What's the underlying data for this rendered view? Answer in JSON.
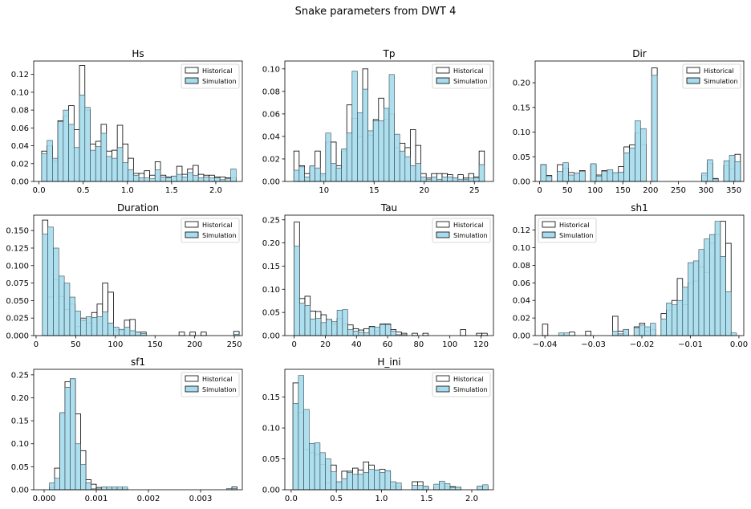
{
  "figure": {
    "title": "Snake parameters from DWT 4",
    "legend": {
      "historical_label": "Historical",
      "simulation_label": "Simulation"
    },
    "colors": {
      "simulation_fill": "#a6dcee",
      "historical_fill": "#ffffff",
      "edge": "#000000",
      "axis": "#000000"
    }
  },
  "chart_data": [
    {
      "type": "bar",
      "title": "Hs",
      "xlabel": "",
      "ylabel": "",
      "legend_position": "top-right",
      "xlim": [
        -0.06,
        2.3
      ],
      "ylim": [
        0,
        0.135
      ],
      "xticks": [
        0.0,
        0.5,
        1.0,
        1.5,
        2.0
      ],
      "xtick_labels": [
        "0.0",
        "0.5",
        "1.0",
        "1.5",
        "2.0"
      ],
      "yticks": [
        0.0,
        0.02,
        0.04,
        0.06,
        0.08,
        0.1,
        0.12
      ],
      "ytick_labels": [
        "0.00",
        "0.02",
        "0.04",
        "0.06",
        "0.08",
        "0.10",
        "0.12"
      ],
      "bins_start": 0.03,
      "bins_end": 2.23,
      "series": [
        {
          "name": "Historical",
          "values": [
            0.034,
            0.04,
            0.023,
            0.068,
            0.073,
            0.085,
            0.058,
            0.13,
            0.08,
            0.042,
            0.045,
            0.064,
            0.034,
            0.035,
            0.063,
            0.042,
            0.026,
            0.009,
            0.009,
            0.012,
            0.007,
            0.022,
            0.007,
            0.005,
            0.006,
            0.017,
            0.008,
            0.014,
            0.018,
            0.008,
            0.007,
            0.007,
            0.005,
            0.005,
            0.004,
            0.004
          ]
        },
        {
          "name": "Simulation",
          "values": [
            0.031,
            0.046,
            0.026,
            0.067,
            0.08,
            0.064,
            0.038,
            0.097,
            0.083,
            0.035,
            0.039,
            0.054,
            0.028,
            0.026,
            0.038,
            0.021,
            0.013,
            0.007,
            0.004,
            0.004,
            0.003,
            0.013,
            0.005,
            0.004,
            0.006,
            0.008,
            0.005,
            0.01,
            0.007,
            0.004,
            0.005,
            0.004,
            0.004,
            0.002,
            0.003,
            0.014
          ]
        }
      ]
    },
    {
      "type": "bar",
      "title": "Tp",
      "xlabel": "",
      "ylabel": "",
      "legend_position": "top-right",
      "xlim": [
        6.1,
        26.9
      ],
      "ylim": [
        0,
        0.107
      ],
      "xticks": [
        10,
        15,
        20,
        25
      ],
      "xtick_labels": [
        "10",
        "15",
        "20",
        "25"
      ],
      "yticks": [
        0.0,
        0.02,
        0.04,
        0.06,
        0.08,
        0.1
      ],
      "ytick_labels": [
        "0.00",
        "0.02",
        "0.04",
        "0.06",
        "0.08",
        "0.10"
      ],
      "bins_start": 7.0,
      "bins_end": 26.0,
      "series": [
        {
          "name": "Historical",
          "values": [
            0.027,
            0.014,
            0.007,
            0.013,
            0.027,
            0.005,
            0.035,
            0.035,
            0.014,
            0.027,
            0.068,
            0.056,
            0.04,
            0.1,
            0.041,
            0.055,
            0.074,
            0.055,
            0.06,
            0.03,
            0.034,
            0.03,
            0.046,
            0.032,
            0.007,
            0.003,
            0.007,
            0.007,
            0.007,
            0.006,
            0.003,
            0.006,
            0.003,
            0.007,
            0.004,
            0.027
          ]
        },
        {
          "name": "Simulation",
          "values": [
            0.01,
            0.013,
            0.004,
            0.014,
            0.012,
            0.007,
            0.043,
            0.016,
            0.012,
            0.029,
            0.043,
            0.098,
            0.061,
            0.082,
            0.045,
            0.054,
            0.054,
            0.065,
            0.095,
            0.042,
            0.027,
            0.022,
            0.014,
            0.016,
            0.004,
            0.002,
            0.004,
            0.002,
            0.004,
            0.004,
            0.003,
            0.002,
            0.002,
            0.003,
            0.003,
            0.015
          ]
        }
      ]
    },
    {
      "type": "bar",
      "title": "Dir",
      "xlabel": "",
      "ylabel": "",
      "legend_position": "top-right",
      "xlim": [
        -8,
        368
      ],
      "ylim": [
        0,
        0.244
      ],
      "xticks": [
        0,
        50,
        100,
        150,
        200,
        250,
        300,
        350
      ],
      "xtick_labels": [
        "0",
        "50",
        "100",
        "150",
        "200",
        "250",
        "300",
        "350"
      ],
      "yticks": [
        0.0,
        0.05,
        0.1,
        0.15,
        0.2
      ],
      "ytick_labels": [
        "0.00",
        "0.05",
        "0.10",
        "0.15",
        "0.20"
      ],
      "bins_start": 2.0,
      "bins_end": 362.0,
      "series": [
        {
          "name": "Historical",
          "values": [
            0.034,
            0.012,
            0.0,
            0.034,
            0.027,
            0.018,
            0.016,
            0.022,
            0.0,
            0.034,
            0.013,
            0.022,
            0.017,
            0.015,
            0.03,
            0.07,
            0.074,
            0.098,
            0.075,
            0.0,
            0.23,
            0.0,
            0.0,
            0.0,
            0.0,
            0.0,
            0.0,
            0.0,
            0.0,
            0.012,
            0.037,
            0.006,
            0.0,
            0.032,
            0.025,
            0.055
          ]
        },
        {
          "name": "Simulation",
          "values": [
            0.034,
            0.01,
            0.0,
            0.02,
            0.038,
            0.013,
            0.017,
            0.02,
            0.0,
            0.036,
            0.011,
            0.02,
            0.024,
            0.018,
            0.019,
            0.058,
            0.068,
            0.123,
            0.107,
            0.0,
            0.215,
            0.0,
            0.0,
            0.0,
            0.0,
            0.0,
            0.0,
            0.0,
            0.0,
            0.017,
            0.044,
            0.005,
            0.0,
            0.042,
            0.053,
            0.04
          ]
        }
      ]
    },
    {
      "type": "bar",
      "title": "Duration",
      "xlabel": "",
      "ylabel": "",
      "legend_position": "top-right",
      "xlim": [
        -3,
        260
      ],
      "ylim": [
        0,
        0.172
      ],
      "xticks": [
        0,
        50,
        100,
        150,
        200,
        250
      ],
      "xtick_labels": [
        "0",
        "50",
        "100",
        "150",
        "200",
        "250"
      ],
      "yticks": [
        0.0,
        0.025,
        0.05,
        0.075,
        0.1,
        0.125,
        0.15
      ],
      "ytick_labels": [
        "0.000",
        "0.025",
        "0.050",
        "0.075",
        "0.100",
        "0.125",
        "0.150"
      ],
      "bins_start": 8.0,
      "bins_end": 256.0,
      "series": [
        {
          "name": "Historical",
          "values": [
            0.165,
            0.055,
            0.08,
            0.056,
            0.037,
            0.045,
            0.013,
            0.025,
            0.018,
            0.033,
            0.045,
            0.075,
            0.062,
            0.008,
            0.008,
            0.022,
            0.023,
            0.005,
            0.005,
            0.0,
            0.0,
            0.0,
            0.0,
            0.0,
            0.0,
            0.005,
            0.0,
            0.005,
            0.0,
            0.005,
            0.0,
            0.0,
            0.0,
            0.0,
            0.0,
            0.006
          ]
        },
        {
          "name": "Simulation",
          "values": [
            0.145,
            0.155,
            0.125,
            0.085,
            0.075,
            0.055,
            0.035,
            0.022,
            0.027,
            0.026,
            0.027,
            0.034,
            0.018,
            0.012,
            0.009,
            0.012,
            0.007,
            0.005,
            0.003,
            0.0,
            0.0,
            0.0,
            0.0,
            0.0,
            0.0,
            0.0,
            0.0,
            0.0,
            0.0,
            0.0,
            0.0,
            0.0,
            0.0,
            0.0,
            0.0,
            0.002
          ]
        }
      ]
    },
    {
      "type": "bar",
      "title": "Tau",
      "xlabel": "",
      "ylabel": "",
      "legend_position": "top-right",
      "xlim": [
        -6,
        128
      ],
      "ylim": [
        0,
        0.26
      ],
      "xticks": [
        0,
        20,
        40,
        60,
        80,
        100,
        120
      ],
      "xtick_labels": [
        "0",
        "20",
        "40",
        "60",
        "80",
        "100",
        "120"
      ],
      "yticks": [
        0.0,
        0.05,
        0.1,
        0.15,
        0.2,
        0.25
      ],
      "ytick_labels": [
        "0.00",
        "0.05",
        "0.10",
        "0.15",
        "0.20",
        "0.25"
      ],
      "bins_start": 0.0,
      "bins_end": 124.0,
      "series": [
        {
          "name": "Historical",
          "values": [
            0.245,
            0.08,
            0.085,
            0.053,
            0.052,
            0.045,
            0.035,
            0.025,
            0.037,
            0.025,
            0.023,
            0.015,
            0.012,
            0.015,
            0.02,
            0.01,
            0.025,
            0.025,
            0.013,
            0.008,
            0.005,
            0.0,
            0.005,
            0.0,
            0.005,
            0.0,
            0.0,
            0.0,
            0.0,
            0.0,
            0.0,
            0.013,
            0.0,
            0.0,
            0.005,
            0.005
          ]
        },
        {
          "name": "Simulation",
          "values": [
            0.193,
            0.07,
            0.065,
            0.036,
            0.037,
            0.028,
            0.035,
            0.03,
            0.055,
            0.056,
            0.013,
            0.01,
            0.007,
            0.006,
            0.019,
            0.018,
            0.024,
            0.024,
            0.01,
            0.002,
            0.002,
            0.0,
            0.0,
            0.0,
            0.0,
            0.0,
            0.0,
            0.0,
            0.0,
            0.0,
            0.0,
            0.0,
            0.0,
            0.0,
            0.0,
            0.0
          ]
        }
      ]
    },
    {
      "type": "bar",
      "title": "sh1",
      "xlabel": "",
      "ylabel": "",
      "legend_position": "top-left",
      "xlim": [
        -0.042,
        0.001
      ],
      "ylim": [
        0,
        0.137
      ],
      "xticks": [
        -0.04,
        -0.03,
        -0.02,
        -0.01,
        0.0
      ],
      "xtick_labels": [
        "−0.04",
        "−0.03",
        "−0.02",
        "−0.01",
        "0.00"
      ],
      "yticks": [
        0.0,
        0.02,
        0.04,
        0.06,
        0.08,
        0.1,
        0.12
      ],
      "ytick_labels": [
        "0.00",
        "0.02",
        "0.04",
        "0.06",
        "0.08",
        "0.10",
        "0.12"
      ],
      "bins_start": -0.0405,
      "bins_end": -0.0005,
      "series": [
        {
          "name": "Historical",
          "values": [
            0.013,
            0.0,
            0.0,
            0.0,
            0.0,
            0.004,
            0.0,
            0.0,
            0.005,
            0.0,
            0.0,
            0.0,
            0.0,
            0.022,
            0.005,
            0.007,
            0.0,
            0.01,
            0.014,
            0.005,
            0.007,
            0.0,
            0.025,
            0.029,
            0.04,
            0.065,
            0.035,
            0.06,
            0.062,
            0.078,
            0.072,
            0.105,
            0.115,
            0.13,
            0.105,
            0.0
          ]
        },
        {
          "name": "Simulation",
          "values": [
            0.0,
            0.0,
            0.0,
            0.003,
            0.003,
            0.0,
            0.0,
            0.0,
            0.0,
            0.0,
            0.0,
            0.0,
            0.0,
            0.005,
            0.002,
            0.007,
            0.0,
            0.009,
            0.012,
            0.01,
            0.014,
            0.0,
            0.019,
            0.037,
            0.035,
            0.04,
            0.055,
            0.083,
            0.085,
            0.098,
            0.11,
            0.115,
            0.13,
            0.09,
            0.05,
            0.003
          ]
        }
      ]
    },
    {
      "type": "bar",
      "title": "sf1",
      "xlabel": "",
      "ylabel": "",
      "legend_position": "top-right",
      "xlim": [
        -0.0002,
        0.0038
      ],
      "ylim": [
        0,
        0.262
      ],
      "xticks": [
        0.0,
        0.001,
        0.002,
        0.003
      ],
      "xtick_labels": [
        "0.000",
        "0.001",
        "0.002",
        "0.003"
      ],
      "yticks": [
        0.0,
        0.05,
        0.1,
        0.15,
        0.2,
        0.25
      ],
      "ytick_labels": [
        "0.00",
        "0.05",
        "0.10",
        "0.15",
        "0.20",
        "0.25"
      ],
      "bins_start": 0.0001,
      "bins_end": 0.0037,
      "series": [
        {
          "name": "Historical",
          "values": [
            0.005,
            0.047,
            0.165,
            0.235,
            0.24,
            0.165,
            0.085,
            0.022,
            0.012,
            0.005,
            0.005,
            0.003,
            0.003,
            0.003,
            0.003,
            0.0,
            0.0,
            0.0,
            0.0,
            0.0,
            0.0,
            0.0,
            0.0,
            0.0,
            0.0,
            0.0,
            0.0,
            0.0,
            0.0,
            0.0,
            0.0,
            0.0,
            0.0,
            0.0,
            0.0,
            0.006
          ]
        },
        {
          "name": "Simulation",
          "values": [
            0.015,
            0.025,
            0.168,
            0.223,
            0.242,
            0.1,
            0.055,
            0.015,
            0.002,
            0.002,
            0.006,
            0.006,
            0.006,
            0.006,
            0.006,
            0.0,
            0.0,
            0.0,
            0.0,
            0.0,
            0.0,
            0.0,
            0.0,
            0.0,
            0.0,
            0.0,
            0.0,
            0.0,
            0.0,
            0.0,
            0.0,
            0.0,
            0.0,
            0.0,
            0.003,
            0.003
          ]
        }
      ]
    },
    {
      "type": "bar",
      "title": "H_ini",
      "xlabel": "",
      "ylabel": "",
      "legend_position": "top-right",
      "xlim": [
        -0.07,
        2.24
      ],
      "ylim": [
        0,
        0.195
      ],
      "xticks": [
        0.0,
        0.5,
        1.0,
        1.5,
        2.0
      ],
      "xtick_labels": [
        "0.0",
        "0.5",
        "1.0",
        "1.5",
        "2.0"
      ],
      "yticks": [
        0.0,
        0.05,
        0.1,
        0.15
      ],
      "ytick_labels": [
        "0.00",
        "0.05",
        "0.10",
        "0.15"
      ],
      "bins_start": 0.02,
      "bins_end": 2.18,
      "series": [
        {
          "name": "Historical",
          "values": [
            0.173,
            0.125,
            0.065,
            0.06,
            0.057,
            0.041,
            0.011,
            0.04,
            0.012,
            0.03,
            0.03,
            0.035,
            0.032,
            0.045,
            0.04,
            0.032,
            0.033,
            0.03,
            0.005,
            0.005,
            0.0,
            0.0,
            0.013,
            0.013,
            0.004,
            0.0,
            0.004,
            0.01,
            0.005,
            0.005,
            0.004,
            0.0,
            0.0,
            0.0,
            0.005,
            0.005
          ]
        },
        {
          "name": "Simulation",
          "values": [
            0.14,
            0.185,
            0.13,
            0.075,
            0.076,
            0.06,
            0.05,
            0.029,
            0.013,
            0.018,
            0.028,
            0.025,
            0.025,
            0.028,
            0.033,
            0.032,
            0.028,
            0.031,
            0.013,
            0.011,
            0.0,
            0.0,
            0.007,
            0.007,
            0.006,
            0.0,
            0.009,
            0.014,
            0.01,
            0.004,
            0.004,
            0.0,
            0.0,
            0.0,
            0.006,
            0.008
          ]
        }
      ]
    }
  ]
}
